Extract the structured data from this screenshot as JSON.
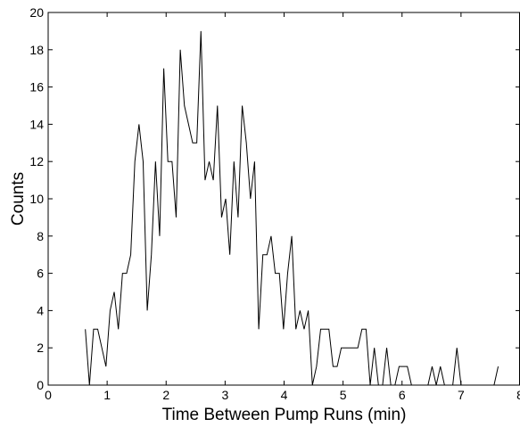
{
  "chart_data": {
    "type": "line",
    "title": "",
    "xlabel": "Time Between Pump Runs (min)",
    "ylabel": "Counts",
    "xlim": [
      0,
      8
    ],
    "ylim": [
      0,
      20
    ],
    "xticks": [
      0,
      1,
      2,
      3,
      4,
      5,
      6,
      7,
      8
    ],
    "yticks": [
      0,
      2,
      4,
      6,
      8,
      10,
      12,
      14,
      16,
      18,
      20
    ],
    "xtick_labels": [
      "0",
      "1",
      "2",
      "3",
      "4",
      "5",
      "6",
      "7",
      "8"
    ],
    "ytick_labels": [
      "0",
      "2",
      "4",
      "6",
      "8",
      "10",
      "12",
      "14",
      "16",
      "18",
      "20"
    ],
    "grid": false,
    "line_color": "#000000",
    "series": [
      {
        "x": [
          0.63,
          0.7,
          0.77,
          0.84,
          0.91,
          0.98,
          1.05,
          1.12,
          1.19,
          1.26,
          1.33,
          1.4,
          1.47,
          1.54,
          1.61,
          1.68,
          1.75,
          1.82,
          1.89,
          1.96,
          2.03,
          2.1,
          2.17,
          2.24,
          2.31,
          2.38,
          2.45,
          2.52,
          2.59,
          2.66,
          2.73,
          2.8,
          2.87,
          2.94,
          3.01,
          3.08,
          3.15,
          3.22,
          3.29,
          3.36,
          3.43,
          3.5,
          3.57,
          3.64,
          3.71,
          3.78,
          3.85,
          3.92,
          3.99,
          4.06,
          4.13,
          4.2,
          4.27,
          4.34,
          4.41,
          4.48,
          4.55,
          4.62,
          4.69,
          4.76,
          4.83,
          4.9,
          4.97,
          5.04,
          5.11,
          5.18,
          5.25,
          5.32,
          5.39,
          5.46,
          5.53,
          5.6,
          5.67,
          5.74,
          5.81,
          5.88,
          5.95,
          6.02,
          6.09,
          6.16,
          6.23,
          6.3,
          6.37,
          6.44,
          6.51,
          6.58,
          6.65,
          6.72,
          6.79,
          6.86,
          6.93,
          7.0,
          7.07,
          7.14,
          7.21,
          7.28,
          7.35,
          7.42,
          7.49,
          7.56,
          7.63
        ],
        "y": [
          3,
          0,
          3,
          3,
          2,
          1,
          4,
          5,
          3,
          6,
          6,
          7,
          12,
          14,
          12,
          4,
          7,
          12,
          8,
          17,
          12,
          12,
          9,
          18,
          15,
          14,
          13,
          13,
          19,
          11,
          12,
          11,
          15,
          9,
          10,
          7,
          12,
          9,
          15,
          13,
          10,
          12,
          3,
          7,
          7,
          8,
          6,
          6,
          3,
          6,
          8,
          3,
          4,
          3,
          4,
          0,
          1,
          3,
          3,
          3,
          1,
          1,
          2,
          2,
          2,
          2,
          2,
          3,
          3,
          0,
          2,
          0,
          0,
          2,
          0,
          0,
          1,
          1,
          1,
          0,
          0,
          0,
          0,
          0,
          1,
          0,
          1,
          0,
          0,
          0,
          2,
          0,
          0,
          0,
          0,
          0,
          0,
          0,
          0,
          0,
          1
        ]
      }
    ]
  }
}
